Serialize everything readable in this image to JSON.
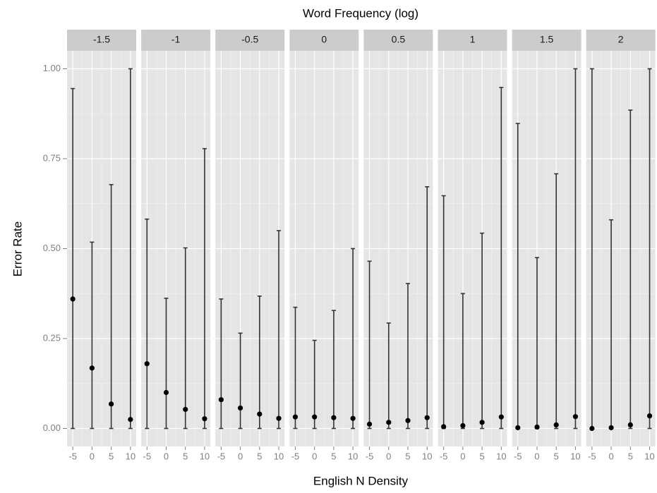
{
  "chart_data": {
    "type": "faceted-errorbar",
    "facet_title": "Word Frequency (log)",
    "x_label": "English N Density",
    "y_label": "Error Rate",
    "x": [
      -5,
      0,
      5,
      10
    ],
    "xlim": [
      -6.5,
      11.5
    ],
    "xticks": [
      -5,
      0,
      5,
      10
    ],
    "ylim": [
      -0.05,
      1.05
    ],
    "yticks": [
      {
        "value": 0,
        "label": "0.00"
      },
      {
        "value": 0.25,
        "label": "0.25"
      },
      {
        "value": 0.5,
        "label": "0.50"
      },
      {
        "value": 0.75,
        "label": "0.75"
      },
      {
        "value": 1,
        "label": "1.00"
      }
    ],
    "grid": true,
    "color": "#000000",
    "facets": [
      {
        "label": "-1.5",
        "values": [
          0.36,
          0.168,
          0.068,
          0.025
        ],
        "lower": [
          0,
          0,
          0,
          0
        ],
        "upper": [
          0.945,
          0.518,
          0.678,
          1.0
        ]
      },
      {
        "label": "-1",
        "values": [
          0.18,
          0.1,
          0.053,
          0.027
        ],
        "lower": [
          0,
          0,
          0,
          0
        ],
        "upper": [
          0.582,
          0.362,
          0.502,
          0.778
        ]
      },
      {
        "label": "-0.5",
        "values": [
          0.08,
          0.057,
          0.04,
          0.028
        ],
        "lower": [
          0,
          0,
          0,
          0
        ],
        "upper": [
          0.36,
          0.265,
          0.368,
          0.55
        ]
      },
      {
        "label": "0",
        "values": [
          0.032,
          0.032,
          0.03,
          0.028
        ],
        "lower": [
          0,
          0,
          0,
          0
        ],
        "upper": [
          0.337,
          0.245,
          0.328,
          0.5
        ]
      },
      {
        "label": "0.5",
        "values": [
          0.012,
          0.017,
          0.022,
          0.03
        ],
        "lower": [
          0,
          0,
          0,
          0
        ],
        "upper": [
          0.465,
          0.293,
          0.403,
          0.672
        ]
      },
      {
        "label": "1",
        "values": [
          0.005,
          0.008,
          0.017,
          0.032
        ],
        "lower": [
          0,
          0,
          0,
          0
        ],
        "upper": [
          0.647,
          0.375,
          0.543,
          0.948
        ]
      },
      {
        "label": "1.5",
        "values": [
          0.002,
          0.004,
          0.01,
          0.033
        ],
        "lower": [
          0,
          0,
          0,
          0
        ],
        "upper": [
          0.848,
          0.475,
          0.708,
          1.0
        ]
      },
      {
        "label": "2",
        "values": [
          0.0,
          0.002,
          0.01,
          0.035
        ],
        "lower": [
          0,
          0,
          0,
          0
        ],
        "upper": [
          1.0,
          0.58,
          0.885,
          1.0
        ]
      }
    ]
  }
}
